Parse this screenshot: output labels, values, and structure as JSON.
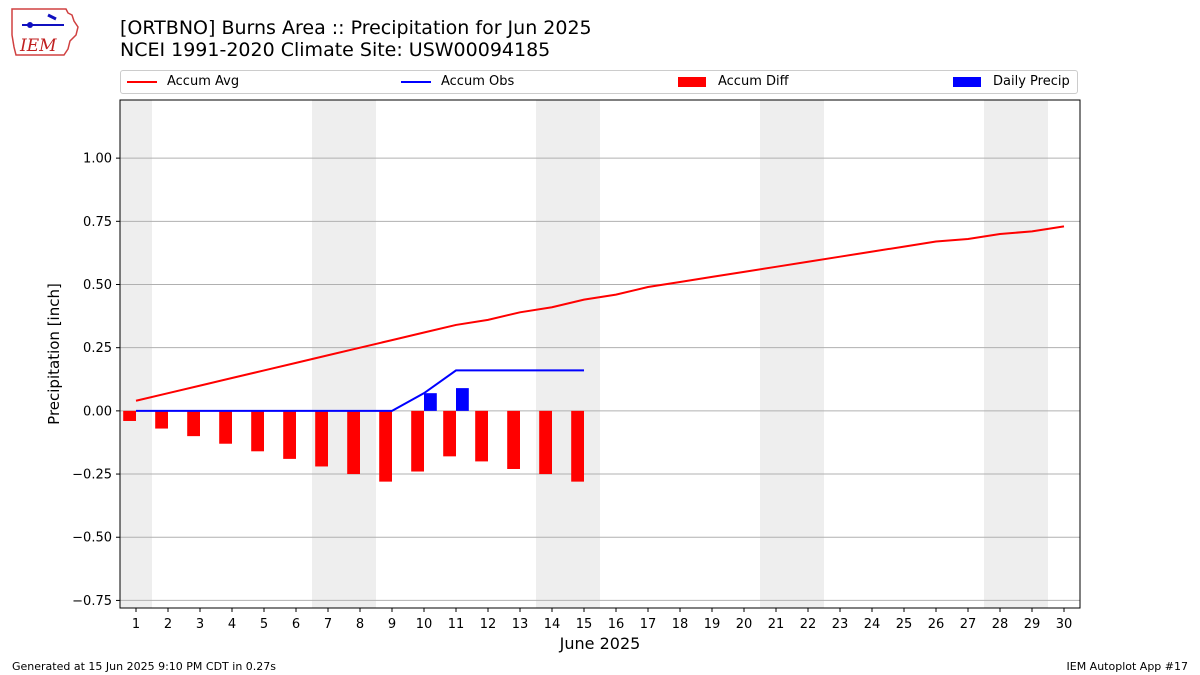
{
  "header": {
    "title_line1": "[ORTBNO] Burns Area :: Precipitation for Jun 2025",
    "title_line2": "NCEI 1991-2020 Climate Site: USW00094185",
    "logo_text": "IEM"
  },
  "footer": {
    "generated": "Generated at 15 Jun 2025 9:10 PM CDT in 0.27s",
    "app": "IEM Autoplot App #17"
  },
  "legend": {
    "accum_avg": "Accum Avg",
    "accum_obs": "Accum Obs",
    "accum_diff": "Accum Diff",
    "daily_precip": "Daily Precip"
  },
  "colors": {
    "accum_avg": "#ff0000",
    "accum_obs": "#0000ff",
    "accum_diff": "#ff0000",
    "daily_precip": "#0000ff",
    "weekend_shade": "#eeeeee",
    "grid": "#b0b0b0"
  },
  "chart_data": {
    "type": "bar",
    "xlabel": "June 2025",
    "ylabel": "Precipitation [inch]",
    "xlim": [
      0.5,
      30.5
    ],
    "ylim": [
      -0.78,
      1.23
    ],
    "grid": true,
    "legend_position": "top",
    "x_ticks": [
      1,
      2,
      3,
      4,
      5,
      6,
      7,
      8,
      9,
      10,
      11,
      12,
      13,
      14,
      15,
      16,
      17,
      18,
      19,
      20,
      21,
      22,
      23,
      24,
      25,
      26,
      27,
      28,
      29,
      30
    ],
    "y_ticks": [
      -0.75,
      -0.5,
      -0.25,
      0.0,
      0.25,
      0.5,
      0.75,
      1.0
    ],
    "y_tick_labels": [
      "−0.75",
      "−0.50",
      "−0.25",
      "0.00",
      "0.25",
      "0.50",
      "0.75",
      "1.00"
    ],
    "weekend_days": [
      [
        1,
        1
      ],
      [
        7,
        8
      ],
      [
        14,
        15
      ],
      [
        21,
        22
      ],
      [
        28,
        29
      ]
    ],
    "series": [
      {
        "name": "Accum Avg",
        "kind": "line",
        "x": [
          1,
          2,
          3,
          4,
          5,
          6,
          7,
          8,
          9,
          10,
          11,
          12,
          13,
          14,
          15,
          16,
          17,
          18,
          19,
          20,
          21,
          22,
          23,
          24,
          25,
          26,
          27,
          28,
          29,
          30
        ],
        "values": [
          0.04,
          0.07,
          0.1,
          0.13,
          0.16,
          0.19,
          0.22,
          0.25,
          0.28,
          0.31,
          0.34,
          0.36,
          0.39,
          0.41,
          0.44,
          0.46,
          0.49,
          0.51,
          0.53,
          0.55,
          0.57,
          0.59,
          0.61,
          0.63,
          0.65,
          0.67,
          0.68,
          0.7,
          0.71,
          0.73
        ]
      },
      {
        "name": "Accum Obs",
        "kind": "line",
        "x": [
          1,
          2,
          3,
          4,
          5,
          6,
          7,
          8,
          9,
          10,
          11,
          12,
          13,
          14,
          15
        ],
        "values": [
          0,
          0,
          0,
          0,
          0,
          0,
          0,
          0,
          0,
          0.07,
          0.16,
          0.16,
          0.16,
          0.16,
          0.16
        ]
      },
      {
        "name": "Accum Diff",
        "kind": "bar",
        "offset": -0.4,
        "x": [
          1,
          2,
          3,
          4,
          5,
          6,
          7,
          8,
          9,
          10,
          11,
          12,
          13,
          14,
          15
        ],
        "values": [
          -0.04,
          -0.07,
          -0.1,
          -0.13,
          -0.16,
          -0.19,
          -0.22,
          -0.25,
          -0.28,
          -0.24,
          -0.18,
          -0.2,
          -0.23,
          -0.25,
          -0.28
        ]
      },
      {
        "name": "Daily Precip",
        "kind": "bar",
        "offset": 0.0,
        "x": [
          10,
          11
        ],
        "values": [
          0.07,
          0.09
        ]
      }
    ]
  }
}
